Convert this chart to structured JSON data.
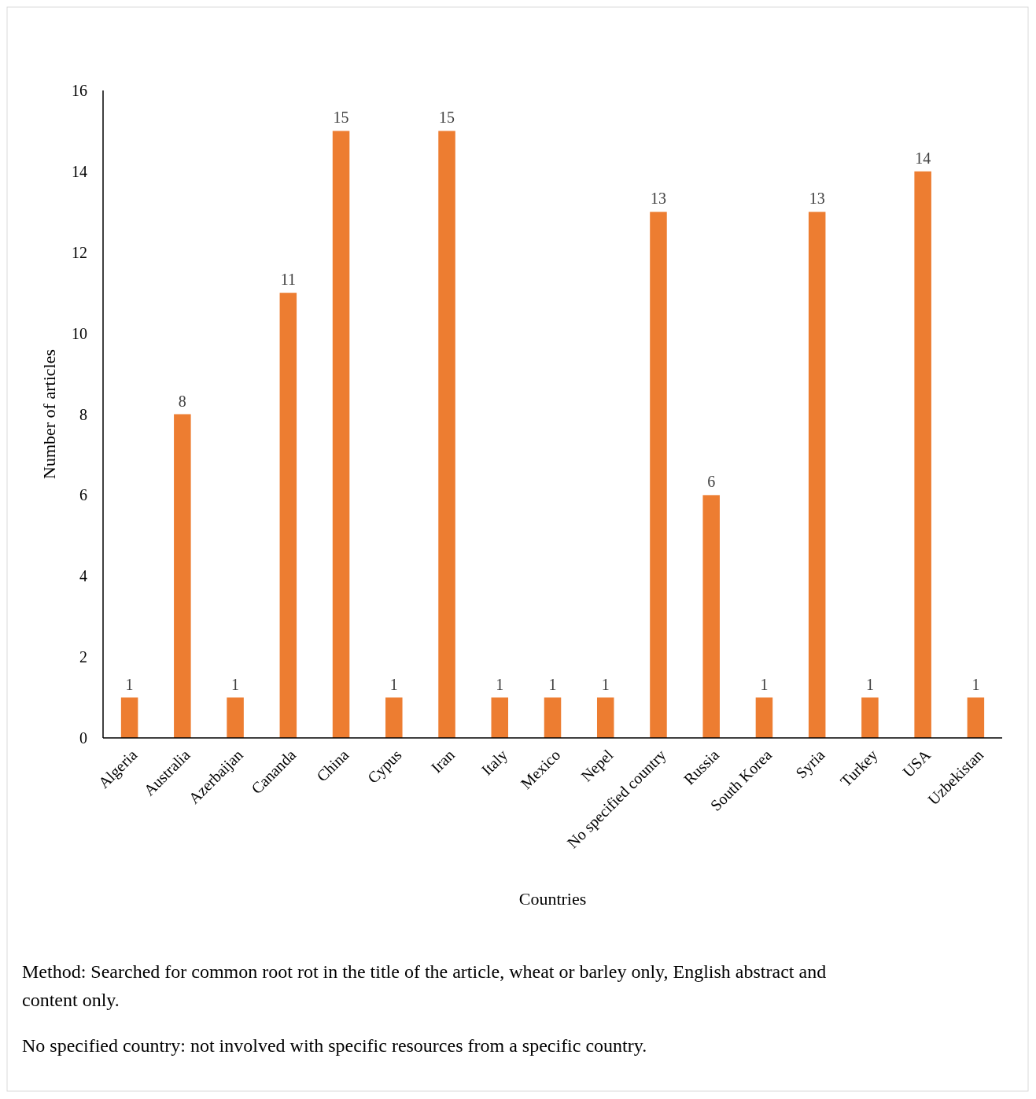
{
  "chart_data": {
    "type": "bar",
    "xlabel": "Countries",
    "ylabel": "Number of articles",
    "categories": [
      "Algeria",
      "Australia",
      "Azerbaijan",
      "Cananda",
      "China",
      "Cypus",
      "Iran",
      "Italy",
      "Mexico",
      "Nepel",
      "No specified country",
      "Russia",
      "South Korea",
      "Syria",
      "Turkey",
      "USA",
      "Uzbekistan"
    ],
    "values": [
      1,
      8,
      1,
      11,
      15,
      1,
      15,
      1,
      1,
      1,
      13,
      6,
      1,
      13,
      1,
      14,
      1
    ],
    "color": "#ed7d31",
    "ylim": [
      0,
      16
    ],
    "yticks": [
      0,
      2,
      4,
      6,
      8,
      10,
      12,
      14,
      16
    ],
    "grid": false,
    "data_labels": true,
    "annotations": [
      "Method: Searched for common root rot in the title of the article, wheat or barley only, English abstract and content only.",
      "No specified country: not involved with specific resources from a specific country."
    ]
  }
}
